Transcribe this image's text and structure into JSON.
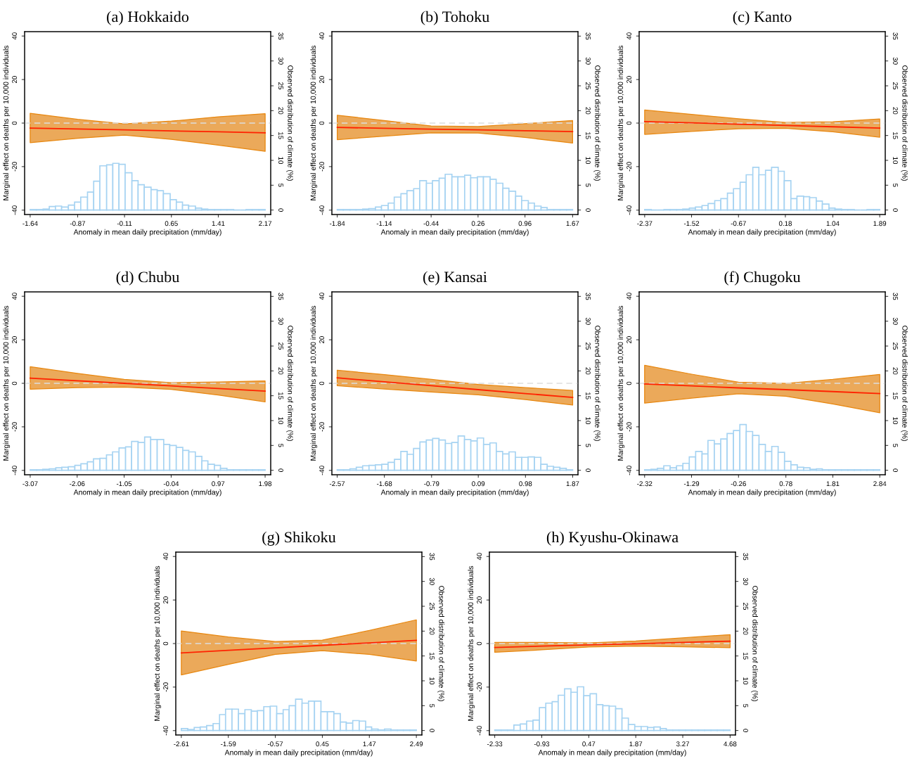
{
  "chart_data": [
    {
      "type": "line",
      "title": "(a) Hokkaido",
      "xlabel": "Anomaly in mean daily precipitation (mm/day)",
      "ylabel": "Marginal effect on deaths per 10,000 individuals",
      "y2label": "Observed distribution of climate (%)",
      "xlim": [
        -1.73,
        2.26
      ],
      "xticks": [
        -1.64,
        -0.87,
        -0.11,
        0.65,
        1.41,
        2.17
      ],
      "ylim": [
        -42,
        42
      ],
      "yticks": [
        -40,
        -20,
        0,
        20,
        40
      ],
      "y2lim": [
        -0.9,
        35.9
      ],
      "y2ticks": [
        0,
        5,
        10,
        15,
        20,
        25,
        30,
        35
      ],
      "grid": false,
      "ref_lines": [
        {
          "axis": "y",
          "value": 0,
          "color": "#dddddd",
          "line_style": "dashed"
        }
      ],
      "series": [
        {
          "type": "histogram",
          "axis": "y2",
          "color": "#a6d3f2",
          "bins": [
            -1.64,
            -1.54,
            -1.43,
            -1.33,
            -1.23,
            -1.13,
            -1.02,
            -0.92,
            -0.82,
            -0.71,
            -0.61,
            -0.51,
            -0.4,
            -0.3,
            -0.2,
            -0.1,
            0.01,
            0.11,
            0.21,
            0.32,
            0.42,
            0.52,
            0.63,
            0.73,
            0.83,
            0.93,
            1.04,
            1.14,
            1.24,
            1.35,
            1.45,
            1.55,
            1.66,
            1.76,
            1.86,
            1.96,
            2.07,
            2.17
          ],
          "values": [
            0.1,
            0.1,
            0.2,
            0.7,
            0.8,
            0.6,
            1.0,
            1.6,
            2.6,
            3.6,
            5.8,
            8.9,
            9.1,
            9.4,
            9.2,
            7.5,
            5.9,
            5.1,
            4.6,
            4.1,
            3.9,
            3.3,
            2.1,
            1.6,
            1.0,
            0.8,
            0.4,
            0.2,
            0.1,
            0.1,
            0.1,
            0.1,
            0,
            0,
            0.1,
            0.1,
            0.1
          ]
        },
        {
          "color": "#ff2200",
          "x": [
            -1.64,
            -0.87,
            -0.11,
            0.65,
            1.41,
            2.17
          ],
          "values": [
            -2.3,
            -2.7,
            -3.1,
            -3.6,
            -4.0,
            -4.5
          ],
          "lower": [
            -9.0,
            -7.0,
            -5.5,
            -7.5,
            -10.1,
            -13.0
          ],
          "upper": [
            4.5,
            1.7,
            -0.4,
            0.9,
            2.9,
            4.3
          ]
        }
      ]
    },
    {
      "type": "line",
      "title": "(b) Tohoku",
      "xlabel": "Anomaly in mean daily precipitation (mm/day)",
      "ylabel": "Marginal effect on deaths per 10,000 individuals",
      "y2label": "Observed distribution of climate (%)",
      "xlim": [
        -1.92,
        1.75
      ],
      "xticks": [
        -1.84,
        -1.14,
        -0.44,
        0.26,
        0.96,
        1.67
      ],
      "ylim": [
        -42,
        42
      ],
      "yticks": [
        -40,
        -20,
        0,
        20,
        40
      ],
      "y2lim": [
        -0.9,
        35.9
      ],
      "y2ticks": [
        0,
        5,
        10,
        15,
        20,
        25,
        30,
        35
      ],
      "grid": false,
      "ref_lines": [
        {
          "axis": "y",
          "value": 0,
          "color": "#dddddd",
          "line_style": "dashed"
        }
      ],
      "series": [
        {
          "type": "histogram",
          "axis": "y2",
          "color": "#a6d3f2",
          "bins": [
            -1.84,
            -1.75,
            -1.65,
            -1.56,
            -1.46,
            -1.37,
            -1.27,
            -1.18,
            -1.08,
            -0.99,
            -0.89,
            -0.8,
            -0.7,
            -0.61,
            -0.51,
            -0.42,
            -0.32,
            -0.23,
            -0.13,
            -0.04,
            0.06,
            0.15,
            0.25,
            0.34,
            0.44,
            0.53,
            0.63,
            0.72,
            0.82,
            0.91,
            1.01,
            1.1,
            1.2,
            1.29,
            1.39,
            1.48,
            1.58,
            1.67
          ],
          "values": [
            0.1,
            0.1,
            0.1,
            0.1,
            0.2,
            0.3,
            0.6,
            0.9,
            1.4,
            2.6,
            3.3,
            3.9,
            4.3,
            5.9,
            5.4,
            5.9,
            6.4,
            7.2,
            6.7,
            6.7,
            7.0,
            6.5,
            6.7,
            6.7,
            6.2,
            5.4,
            4.4,
            3.8,
            2.8,
            1.9,
            1.4,
            0.8,
            0.5,
            0.1,
            0.1,
            0.1,
            0.1
          ]
        },
        {
          "color": "#ff2200",
          "x": [
            -1.84,
            -1.14,
            -0.44,
            0.26,
            0.96,
            1.67
          ],
          "values": [
            -2.0,
            -2.4,
            -2.8,
            -3.1,
            -3.5,
            -3.9
          ],
          "lower": [
            -7.6,
            -6.0,
            -4.5,
            -4.6,
            -6.6,
            -9.2
          ],
          "upper": [
            3.6,
            1.2,
            -1.3,
            -1.6,
            -0.3,
            1.2
          ]
        }
      ]
    },
    {
      "type": "line",
      "title": "(c) Kanto",
      "xlabel": "Anomaly in mean daily precipitation (mm/day)",
      "ylabel": "Marginal effect on deaths per 10,000 individuals",
      "y2label": "Observed distribution of climate (%)",
      "xlim": [
        -2.47,
        1.99
      ],
      "xticks": [
        -2.37,
        -1.52,
        -0.67,
        0.18,
        1.04,
        1.89
      ],
      "ylim": [
        -42,
        42
      ],
      "yticks": [
        -40,
        -20,
        0,
        20,
        40
      ],
      "y2lim": [
        -0.9,
        35.9
      ],
      "y2ticks": [
        0,
        5,
        10,
        15,
        20,
        25,
        30,
        35
      ],
      "grid": false,
      "ref_lines": [
        {
          "axis": "y",
          "value": 0,
          "color": "#dddddd",
          "line_style": "dashed"
        }
      ],
      "series": [
        {
          "type": "histogram",
          "axis": "y2",
          "color": "#a6d3f2",
          "bins": [
            -2.37,
            -2.25,
            -2.14,
            -2.02,
            -1.91,
            -1.79,
            -1.68,
            -1.56,
            -1.45,
            -1.33,
            -1.22,
            -1.1,
            -0.99,
            -0.87,
            -0.76,
            -0.64,
            -0.53,
            -0.41,
            -0.3,
            -0.18,
            -0.07,
            0.05,
            0.16,
            0.28,
            0.39,
            0.51,
            0.62,
            0.74,
            0.85,
            0.97,
            1.08,
            1.2,
            1.31,
            1.43,
            1.54,
            1.66,
            1.78,
            1.89
          ],
          "values": [
            0.1,
            0,
            0,
            0.1,
            0.1,
            0.1,
            0.2,
            0.4,
            0.6,
            0.9,
            1.3,
            1.9,
            2.3,
            3.4,
            4.3,
            5.6,
            7.1,
            8.6,
            7.1,
            8.0,
            8.6,
            7.8,
            5.9,
            2.3,
            2.8,
            2.7,
            2.5,
            1.8,
            1.2,
            0.4,
            0.2,
            0.1,
            0.1,
            0,
            0,
            0.1,
            0.1
          ]
        },
        {
          "color": "#ff2200",
          "x": [
            -2.37,
            -1.52,
            -0.67,
            0.18,
            1.04,
            1.89
          ],
          "values": [
            0.7,
            0.1,
            -0.5,
            -1.1,
            -1.7,
            -2.3
          ],
          "lower": [
            -5.2,
            -3.8,
            -2.6,
            -2.4,
            -4.0,
            -6.5
          ],
          "upper": [
            6.0,
            4.0,
            2.0,
            0.3,
            0.6,
            1.9
          ]
        }
      ]
    },
    {
      "type": "line",
      "title": "(d) Chubu",
      "xlabel": "Anomaly in mean daily precipitation (mm/day)",
      "ylabel": "Marginal effect on deaths per 10,000 individuals",
      "y2label": "Observed distribution of climate (%)",
      "xlim": [
        -3.19,
        2.1
      ],
      "xticks": [
        -3.07,
        -2.06,
        -1.05,
        -0.04,
        0.97,
        1.98
      ],
      "ylim": [
        -42,
        42
      ],
      "yticks": [
        -40,
        -20,
        0,
        20,
        40
      ],
      "y2lim": [
        -0.9,
        35.9
      ],
      "y2ticks": [
        0,
        5,
        10,
        15,
        20,
        25,
        30,
        35
      ],
      "grid": false,
      "ref_lines": [
        {
          "axis": "y",
          "value": 0,
          "color": "#dddddd",
          "line_style": "dashed"
        }
      ],
      "series": [
        {
          "type": "histogram",
          "axis": "y2",
          "color": "#a6d3f2",
          "bins": [
            -3.07,
            -2.93,
            -2.8,
            -2.66,
            -2.52,
            -2.39,
            -2.25,
            -2.11,
            -1.98,
            -1.84,
            -1.71,
            -1.57,
            -1.43,
            -1.3,
            -1.16,
            -1.02,
            -0.89,
            -0.75,
            -0.61,
            -0.48,
            -0.34,
            -0.2,
            -0.07,
            0.07,
            0.21,
            0.34,
            0.48,
            0.62,
            0.75,
            0.89,
            1.02,
            1.16,
            1.3,
            1.43,
            1.57,
            1.71,
            1.84,
            1.98
          ],
          "values": [
            0.1,
            0.1,
            0.2,
            0.3,
            0.5,
            0.6,
            0.7,
            1.0,
            1.3,
            1.7,
            2.3,
            2.4,
            3.1,
            3.7,
            4.5,
            4.7,
            5.8,
            5.6,
            6.7,
            6.2,
            6.2,
            5.2,
            5.0,
            4.6,
            4.0,
            3.7,
            2.8,
            1.9,
            1.2,
            1.0,
            0.4,
            0.1,
            0.1,
            0.1,
            0.1,
            0.1,
            0.1
          ]
        },
        {
          "color": "#ff2200",
          "x": [
            -3.07,
            -2.06,
            -1.05,
            -0.04,
            0.97,
            1.98
          ],
          "values": [
            2.4,
            1.2,
            0.0,
            -1.2,
            -2.4,
            -3.6
          ],
          "lower": [
            -2.7,
            -2.0,
            -1.7,
            -2.8,
            -5.4,
            -8.5
          ],
          "upper": [
            7.6,
            4.6,
            1.8,
            0.3,
            0.6,
            1.1
          ]
        }
      ]
    },
    {
      "type": "line",
      "title": "(e) Kansai",
      "xlabel": "Anomaly in mean daily precipitation (mm/day)",
      "ylabel": "Marginal effect on deaths per 10,000 individuals",
      "y2label": "Observed distribution of climate (%)",
      "xlim": [
        -2.67,
        1.97
      ],
      "xticks": [
        -2.57,
        -1.68,
        -0.79,
        0.09,
        0.98,
        1.87
      ],
      "ylim": [
        -42,
        42
      ],
      "yticks": [
        -40,
        -20,
        0,
        20,
        40
      ],
      "y2lim": [
        -0.9,
        35.9
      ],
      "y2ticks": [
        0,
        5,
        10,
        15,
        20,
        25,
        30,
        35
      ],
      "grid": false,
      "ref_lines": [
        {
          "axis": "y",
          "value": 0,
          "color": "#dddddd",
          "line_style": "dashed"
        }
      ],
      "series": [
        {
          "type": "histogram",
          "axis": "y2",
          "color": "#a6d3f2",
          "bins": [
            -2.57,
            -2.45,
            -2.33,
            -2.21,
            -2.09,
            -1.97,
            -1.85,
            -1.73,
            -1.61,
            -1.49,
            -1.37,
            -1.25,
            -1.13,
            -1.01,
            -0.89,
            -0.77,
            -0.65,
            -0.53,
            -0.41,
            -0.29,
            -0.17,
            -0.05,
            0.07,
            0.19,
            0.31,
            0.43,
            0.55,
            0.67,
            0.79,
            0.91,
            1.03,
            1.15,
            1.27,
            1.39,
            1.51,
            1.63,
            1.75,
            1.87
          ],
          "values": [
            0.1,
            0.1,
            0.3,
            0.6,
            0.9,
            1.0,
            1.1,
            1.2,
            1.6,
            2.2,
            3.8,
            3.2,
            4.4,
            5.7,
            6.1,
            6.4,
            6.1,
            5.4,
            5.6,
            6.9,
            6.2,
            5.9,
            6.5,
            5.2,
            5.5,
            3.8,
            3.3,
            3.7,
            2.6,
            2.6,
            2.7,
            2.6,
            1.2,
            0.8,
            0.6,
            0.4,
            0.1
          ]
        },
        {
          "color": "#ff2200",
          "x": [
            -2.57,
            -1.68,
            -0.79,
            0.09,
            0.98,
            1.87
          ],
          "values": [
            2.5,
            0.7,
            -1.1,
            -2.9,
            -4.7,
            -6.5
          ],
          "lower": [
            -1.1,
            -2.6,
            -4.0,
            -5.3,
            -7.5,
            -10.0
          ],
          "upper": [
            6.0,
            4.0,
            1.8,
            -0.5,
            -2.0,
            -3.3
          ]
        }
      ]
    },
    {
      "type": "line",
      "title": "(f) Chugoku",
      "xlabel": "Anomaly in mean daily precipitation (mm/day)",
      "ylabel": "Marginal effect on deaths per 10,000 individuals",
      "y2label": "Observed distribution of climate (%)",
      "xlim": [
        -2.44,
        2.96
      ],
      "xticks": [
        -2.32,
        -1.29,
        -0.26,
        0.78,
        1.81,
        2.84
      ],
      "ylim": [
        -42,
        42
      ],
      "yticks": [
        -40,
        -20,
        0,
        20,
        40
      ],
      "y2lim": [
        -0.9,
        35.9
      ],
      "y2ticks": [
        0,
        5,
        10,
        15,
        20,
        25,
        30,
        35
      ],
      "grid": false,
      "ref_lines": [
        {
          "axis": "y",
          "value": 0,
          "color": "#dddddd",
          "line_style": "dashed"
        }
      ],
      "series": [
        {
          "type": "histogram",
          "axis": "y2",
          "color": "#a6d3f2",
          "bins": [
            -2.32,
            -2.18,
            -2.04,
            -1.9,
            -1.76,
            -1.62,
            -1.48,
            -1.34,
            -1.2,
            -1.06,
            -0.93,
            -0.79,
            -0.65,
            -0.51,
            -0.37,
            -0.23,
            -0.09,
            0.05,
            0.19,
            0.33,
            0.47,
            0.61,
            0.75,
            0.89,
            1.03,
            1.17,
            1.31,
            1.45,
            1.58,
            1.72,
            1.86,
            2.0,
            2.14,
            2.28,
            2.42,
            2.56,
            2.7,
            2.84
          ],
          "values": [
            0.1,
            0.2,
            0.4,
            0.9,
            0.5,
            0.9,
            1.4,
            2.7,
            3.8,
            3.3,
            6.0,
            5.3,
            6.3,
            7.4,
            8.0,
            9.2,
            7.8,
            7.0,
            5.2,
            3.8,
            4.8,
            3.6,
            1.8,
            1.1,
            0.6,
            0.5,
            0.2,
            0.3,
            0.1,
            0.1,
            0.1,
            0.1,
            0.1,
            0.1,
            0.1,
            0.1,
            0.1
          ]
        },
        {
          "color": "#ff2200",
          "x": [
            -2.32,
            -1.29,
            -0.26,
            0.78,
            1.81,
            2.84
          ],
          "values": [
            -0.3,
            -1.2,
            -2.1,
            -2.9,
            -3.8,
            -4.7
          ],
          "lower": [
            -9.1,
            -6.8,
            -4.8,
            -5.9,
            -9.5,
            -13.5
          ],
          "upper": [
            8.3,
            4.2,
            0.5,
            0.0,
            1.8,
            4.1
          ]
        }
      ]
    },
    {
      "type": "line",
      "title": "(g) Shikoku",
      "xlabel": "Anomaly in mean daily precipitation (mm/day)",
      "ylabel": "Marginal effect on deaths per 10,000 individuals",
      "y2label": "Observed distribution of climate (%)",
      "xlim": [
        -2.73,
        2.61
      ],
      "xticks": [
        -2.61,
        -1.59,
        -0.57,
        0.45,
        1.47,
        2.49
      ],
      "ylim": [
        -42,
        42
      ],
      "yticks": [
        -40,
        -20,
        0,
        20,
        40
      ],
      "y2lim": [
        -0.9,
        35.9
      ],
      "y2ticks": [
        0,
        5,
        10,
        15,
        20,
        25,
        30,
        35
      ],
      "grid": false,
      "ref_lines": [
        {
          "axis": "y",
          "value": 0,
          "color": "#dddddd",
          "line_style": "dashed"
        }
      ],
      "series": [
        {
          "type": "histogram",
          "axis": "y2",
          "color": "#a6d3f2",
          "bins": [
            -2.61,
            -2.47,
            -2.33,
            -2.2,
            -2.06,
            -1.92,
            -1.78,
            -1.65,
            -1.51,
            -1.37,
            -1.23,
            -1.09,
            -0.96,
            -0.82,
            -0.68,
            -0.54,
            -0.4,
            -0.27,
            -0.13,
            0.01,
            0.15,
            0.28,
            0.42,
            0.56,
            0.7,
            0.84,
            0.97,
            1.11,
            1.25,
            1.39,
            1.52,
            1.66,
            1.8,
            1.94,
            2.08,
            2.21,
            2.35,
            2.49
          ],
          "values": [
            0.4,
            0.2,
            0.6,
            0.7,
            1.0,
            1.4,
            3.2,
            4.3,
            4.3,
            3.4,
            4.2,
            3.9,
            4.0,
            4.8,
            4.9,
            3.4,
            4.2,
            5.0,
            6.3,
            5.5,
            5.9,
            5.9,
            3.8,
            3.8,
            3.4,
            1.7,
            1.5,
            2.0,
            1.9,
            0.7,
            0.3,
            0.1,
            0.3,
            0.1,
            0.1,
            0.1,
            0.1
          ]
        },
        {
          "color": "#ff2200",
          "x": [
            -2.61,
            -1.59,
            -0.57,
            0.45,
            1.47,
            2.49
          ],
          "values": [
            -4.3,
            -3.1,
            -2.0,
            -0.8,
            0.3,
            1.5
          ],
          "lower": [
            -14.4,
            -9.6,
            -5.0,
            -3.3,
            -5.0,
            -8.0
          ],
          "upper": [
            5.8,
            3.0,
            0.9,
            1.6,
            6.0,
            10.9
          ]
        }
      ]
    },
    {
      "type": "line",
      "title": "(h) Kyushu-Okinawa",
      "xlabel": "Anomaly in mean daily precipitation (mm/day)",
      "ylabel": "Marginal effect on deaths per 10,000 individuals",
      "y2label": "Observed distribution of climate (%)",
      "xlim": [
        -2.49,
        4.84
      ],
      "xticks": [
        -2.33,
        -0.93,
        0.47,
        1.87,
        3.27,
        4.68
      ],
      "ylim": [
        -42,
        42
      ],
      "yticks": [
        -40,
        -20,
        0,
        20,
        40
      ],
      "y2lim": [
        -0.9,
        35.9
      ],
      "y2ticks": [
        0,
        5,
        10,
        15,
        20,
        25,
        30,
        35
      ],
      "grid": false,
      "ref_lines": [
        {
          "axis": "y",
          "value": 0,
          "color": "#dddddd",
          "line_style": "dashed"
        }
      ],
      "series": [
        {
          "type": "histogram",
          "axis": "y2",
          "color": "#a6d3f2",
          "bins": [
            -2.33,
            -2.14,
            -1.95,
            -1.76,
            -1.57,
            -1.38,
            -1.19,
            -1.0,
            -0.81,
            -0.62,
            -0.44,
            -0.25,
            -0.06,
            0.13,
            0.32,
            0.51,
            0.7,
            0.89,
            1.08,
            1.27,
            1.46,
            1.65,
            1.84,
            2.03,
            2.22,
            2.41,
            2.6,
            2.78,
            2.97,
            3.16,
            3.35,
            3.54,
            3.73,
            3.92,
            4.11,
            4.3,
            4.49,
            4.68
          ],
          "values": [
            0.1,
            0.1,
            0.1,
            1.1,
            1.3,
            1.9,
            2.1,
            4.6,
            5.5,
            5.8,
            7.1,
            8.4,
            7.7,
            8.8,
            7.0,
            7.4,
            5.2,
            5.0,
            4.9,
            4.4,
            2.5,
            1.2,
            0.8,
            0.8,
            0.6,
            0.7,
            0.4,
            0.1,
            0.1,
            0.1,
            0.1,
            0.1,
            0.1,
            0.1,
            0.1,
            0.1,
            0.1
          ]
        },
        {
          "color": "#ff2200",
          "x": [
            -2.33,
            -0.93,
            0.47,
            1.87,
            3.27,
            4.68
          ],
          "values": [
            -1.8,
            -1.2,
            -0.6,
            -0.1,
            0.5,
            1.1
          ],
          "lower": [
            -4.0,
            -2.9,
            -1.6,
            -1.2,
            -1.5,
            -1.9
          ],
          "upper": [
            0.5,
            0.5,
            0.3,
            1.2,
            2.6,
            4.1
          ]
        }
      ]
    }
  ]
}
